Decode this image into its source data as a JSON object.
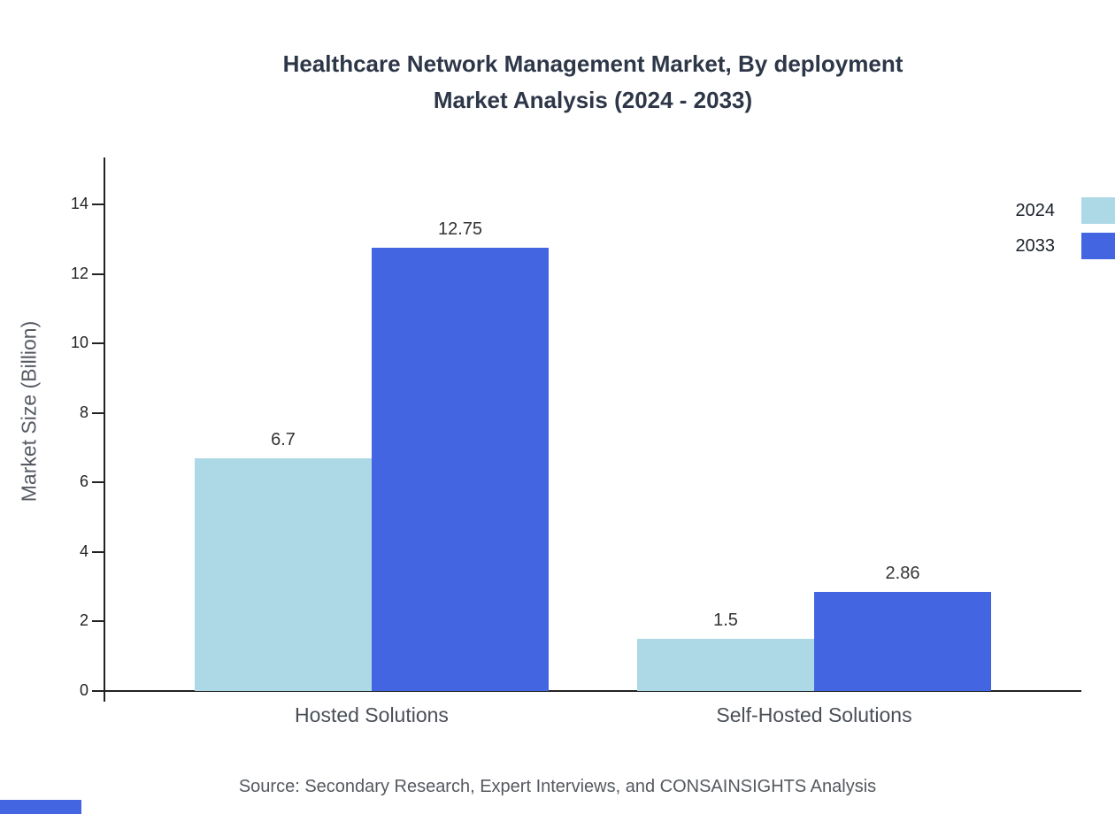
{
  "title": {
    "line1": "Healthcare Network Management Market, By deployment",
    "line2": "Market Analysis (2024 - 2033)"
  },
  "chart_data": {
    "type": "bar",
    "title": "Healthcare Network Management Market, By deployment Market Analysis (2024 - 2033)",
    "categories": [
      "Hosted Solutions",
      "Self-Hosted Solutions"
    ],
    "series": [
      {
        "name": "2024",
        "color": "#ADD8E6",
        "values": [
          6.7,
          1.5
        ]
      },
      {
        "name": "2033",
        "color": "#4365E2",
        "values": [
          12.75,
          2.86
        ]
      }
    ],
    "value_labels": [
      [
        "6.7",
        "1.5"
      ],
      [
        "12.75",
        "2.86"
      ]
    ],
    "xlabel": "",
    "ylabel": "Market Size (Billion)",
    "ylim": [
      0,
      15
    ],
    "yticks": [
      0,
      2,
      4,
      6,
      8,
      10,
      12,
      14
    ],
    "grid": false,
    "legend_position": "top-right"
  },
  "footer": {
    "source": "Source: Secondary Research, Expert Interviews, and CONSAINSIGHTS Analysis"
  }
}
